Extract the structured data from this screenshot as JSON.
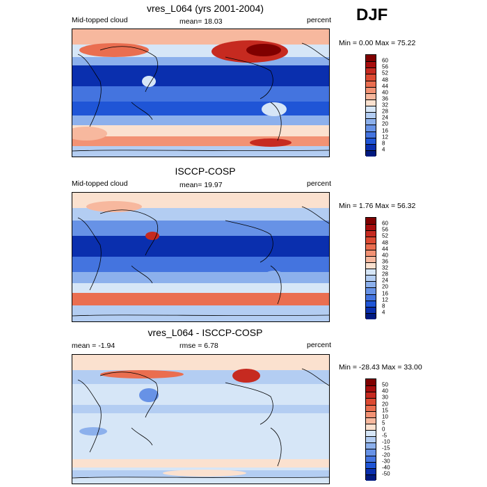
{
  "season": "DJF",
  "units_default": "percent",
  "panels": [
    {
      "title": "vres_L064 (yrs 2001-2004)",
      "left_label": "Mid-topped cloud",
      "center_label": "mean=  18.03",
      "right_label": "percent",
      "minmax": "Min =   0.00 Max =  75.22",
      "colorbar": {
        "labels": [
          "60",
          "56",
          "52",
          "48",
          "44",
          "40",
          "36",
          "32",
          "28",
          "24",
          "20",
          "16",
          "12",
          "8",
          "4"
        ],
        "colors": [
          "#7f0000",
          "#a70d0d",
          "#c62a20",
          "#dc4a32",
          "#ea6e50",
          "#f29274",
          "#f7b89e",
          "#fbe1cf",
          "#d6e6f7",
          "#b3cdf2",
          "#8cb0ec",
          "#6792e6",
          "#4474df",
          "#1f55d6",
          "#0a2fae",
          "#001a80"
        ]
      }
    },
    {
      "title": "ISCCP-COSP",
      "left_label": "Mid-topped cloud",
      "center_label": "mean=  19.97",
      "right_label": "percent",
      "minmax": "Min =   1.76 Max =  56.32",
      "colorbar": {
        "labels": [
          "60",
          "56",
          "52",
          "48",
          "44",
          "40",
          "36",
          "32",
          "28",
          "24",
          "20",
          "16",
          "12",
          "8",
          "4"
        ],
        "colors": [
          "#7f0000",
          "#a70d0d",
          "#c62a20",
          "#dc4a32",
          "#ea6e50",
          "#f29274",
          "#f7b89e",
          "#fbe1cf",
          "#d6e6f7",
          "#b3cdf2",
          "#8cb0ec",
          "#6792e6",
          "#4474df",
          "#1f55d6",
          "#0a2fae",
          "#001a80"
        ]
      }
    },
    {
      "title": "vres_L064 - ISCCP-COSP",
      "left_label": "mean =  -1.94",
      "center_label": "rmse =   6.78",
      "right_label": "percent",
      "minmax": "Min = -28.43 Max =  33.00",
      "colorbar": {
        "labels": [
          "50",
          "40",
          "30",
          "20",
          "15",
          "10",
          "5",
          "0",
          "-5",
          "-10",
          "-15",
          "-20",
          "-30",
          "-40",
          "-50"
        ],
        "colors": [
          "#7f0000",
          "#a70d0d",
          "#c62a20",
          "#dc4a32",
          "#ea6e50",
          "#f29274",
          "#f7b89e",
          "#fbe1cf",
          "#d6e6f7",
          "#b3cdf2",
          "#8cb0ec",
          "#6792e6",
          "#4474df",
          "#1f55d6",
          "#0a2fae",
          "#001a80"
        ]
      }
    }
  ]
}
